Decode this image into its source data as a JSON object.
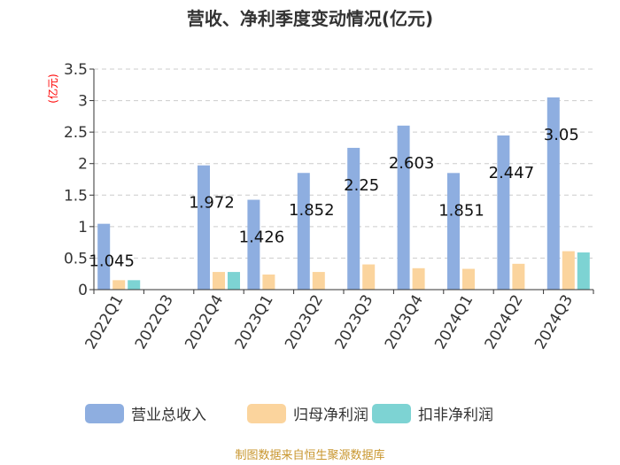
{
  "chart_data": {
    "type": "bar",
    "title": "营收、净利季度变动情况(亿元)",
    "ylabel": "(亿元)",
    "xlabel": "",
    "ylim": [
      0,
      3.5
    ],
    "yticks": [
      "0",
      "0.5",
      "1",
      "1.5",
      "2",
      "2.5",
      "3",
      "3.5"
    ],
    "grid": true,
    "legend_position": "bottom",
    "categories": [
      "2022Q1",
      "2022Q3",
      "2022Q4",
      "2023Q1",
      "2023Q2",
      "2023Q3",
      "2023Q4",
      "2024Q1",
      "2024Q2",
      "2024Q3"
    ],
    "series": [
      {
        "name": "营业总收入",
        "color": "#8eaee0",
        "values": [
          1.045,
          null,
          1.972,
          1.426,
          1.852,
          2.25,
          2.603,
          1.851,
          2.447,
          3.05
        ]
      },
      {
        "name": "归母净利润",
        "color": "#fbd49d",
        "values": [
          0.15,
          null,
          0.28,
          0.24,
          0.28,
          0.4,
          0.34,
          0.33,
          0.41,
          0.61
        ]
      },
      {
        "name": "扣非净利润",
        "color": "#7dd3d3",
        "values": [
          0.15,
          null,
          0.28,
          null,
          null,
          null,
          null,
          null,
          null,
          0.59
        ]
      }
    ],
    "data_labels": [
      "1.045",
      "",
      "1.972",
      "1.426",
      "1.852",
      "2.25",
      "2.603",
      "1.851",
      "2.447",
      "3.05"
    ]
  },
  "footer": {
    "source": "制图数据来自恒生聚源数据库"
  }
}
